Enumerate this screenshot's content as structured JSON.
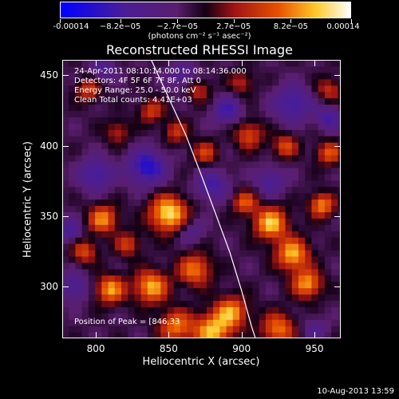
{
  "colorbar": {
    "tick_labels": [
      "-0.00014",
      "−8.2e−05",
      "−2.7e−05",
      "2.7e−05",
      "8.2e−05",
      "0.00014"
    ],
    "tick_values": [
      -0.00014,
      -8.2e-05,
      -2.7e-05,
      2.7e-05,
      8.2e-05,
      0.00014
    ],
    "range": [
      -0.00014,
      0.00014
    ],
    "units": "(photons cm⁻² s⁻¹ asec⁻²)",
    "colors": [
      "#0000ff",
      "#4b1e96",
      "#5a1e6e",
      "#000000",
      "#c81e1e",
      "#ff7800",
      "#ffffff"
    ]
  },
  "title": "Reconstructed RHESSI Image",
  "info": {
    "time": "24-Apr-2011 08:10:14.000 to 08:14:36.000",
    "detectors": "Detectors: 4F 5F 6F 7F 8F, Att 0",
    "energy": "Energy Range: 25.0 - 50.0 keV",
    "clean": "Clean    Total counts: 4.41E+03",
    "peak": "Position of Peak = [846,33"
  },
  "footer": "10-Aug-2013 13:59",
  "chart_data": {
    "type": "heatmap",
    "title": "Reconstructed RHESSI Image",
    "xlabel": "Heliocentric X (arcsec)",
    "ylabel": "Heliocentric Y (arcsec)",
    "xlim": [
      777,
      968
    ],
    "ylim": [
      263,
      461
    ],
    "xticks": [
      800,
      850,
      900,
      950
    ],
    "yticks": [
      300,
      350,
      400,
      450
    ],
    "xtick_labels": [
      "800",
      "850",
      "900",
      "950"
    ],
    "ytick_labels": [
      "300",
      "350",
      "400",
      "450"
    ],
    "grid": false,
    "limb_curve": {
      "x": [
        838,
        850,
        862,
        872,
        882,
        892,
        900,
        907,
        913,
        916
      ],
      "y": [
        461,
        434,
        407,
        380,
        352,
        324,
        297,
        271,
        252,
        263
      ]
    },
    "peak_position": [
      846,
      33
    ],
    "blobs": [
      {
        "x": 850,
        "y": 352,
        "amp": 1.0,
        "r": 9
      },
      {
        "x": 805,
        "y": 348,
        "amp": 0.75,
        "r": 7
      },
      {
        "x": 792,
        "y": 325,
        "amp": 0.55,
        "r": 6
      },
      {
        "x": 822,
        "y": 330,
        "amp": 0.5,
        "r": 6
      },
      {
        "x": 810,
        "y": 298,
        "amp": 0.8,
        "r": 7
      },
      {
        "x": 838,
        "y": 300,
        "amp": 0.85,
        "r": 8
      },
      {
        "x": 868,
        "y": 312,
        "amp": 0.7,
        "r": 8
      },
      {
        "x": 893,
        "y": 282,
        "amp": 0.75,
        "r": 8
      },
      {
        "x": 880,
        "y": 268,
        "amp": 0.85,
        "r": 9
      },
      {
        "x": 855,
        "y": 272,
        "amp": 0.7,
        "r": 8
      },
      {
        "x": 920,
        "y": 345,
        "amp": 0.9,
        "r": 8
      },
      {
        "x": 935,
        "y": 323,
        "amp": 0.85,
        "r": 8
      },
      {
        "x": 945,
        "y": 302,
        "amp": 0.8,
        "r": 7
      },
      {
        "x": 925,
        "y": 270,
        "amp": 0.7,
        "r": 8
      },
      {
        "x": 960,
        "y": 395,
        "amp": 0.6,
        "r": 6
      },
      {
        "x": 955,
        "y": 358,
        "amp": 0.75,
        "r": 6
      },
      {
        "x": 930,
        "y": 400,
        "amp": 0.55,
        "r": 6
      },
      {
        "x": 905,
        "y": 408,
        "amp": 0.55,
        "r": 7
      },
      {
        "x": 902,
        "y": 360,
        "amp": 0.6,
        "r": 6
      },
      {
        "x": 875,
        "y": 395,
        "amp": 0.5,
        "r": 6
      },
      {
        "x": 838,
        "y": 425,
        "amp": 0.5,
        "r": 6
      },
      {
        "x": 855,
        "y": 410,
        "amp": 0.45,
        "r": 6
      },
      {
        "x": 795,
        "y": 440,
        "amp": 0.5,
        "r": 6
      },
      {
        "x": 815,
        "y": 410,
        "amp": 0.4,
        "r": 6
      },
      {
        "x": 960,
        "y": 440,
        "amp": 0.45,
        "r": 6
      },
      {
        "x": 900,
        "y": 445,
        "amp": 0.4,
        "r": 6
      },
      {
        "x": 870,
        "y": 440,
        "amp": 0.45,
        "r": 6
      },
      {
        "x": 835,
        "y": 385,
        "amp": -0.7,
        "r": 9
      },
      {
        "x": 800,
        "y": 380,
        "amp": -0.55,
        "r": 8
      },
      {
        "x": 880,
        "y": 372,
        "amp": -0.5,
        "r": 8
      },
      {
        "x": 935,
        "y": 430,
        "amp": -0.55,
        "r": 9
      },
      {
        "x": 890,
        "y": 425,
        "amp": -0.5,
        "r": 7
      },
      {
        "x": 960,
        "y": 420,
        "amp": -0.5,
        "r": 6
      },
      {
        "x": 782,
        "y": 340,
        "amp": -0.45,
        "r": 6
      },
      {
        "x": 785,
        "y": 300,
        "amp": -0.45,
        "r": 7
      },
      {
        "x": 920,
        "y": 375,
        "amp": -0.45,
        "r": 7
      },
      {
        "x": 805,
        "y": 455,
        "amp": -0.4,
        "r": 6
      },
      {
        "x": 860,
        "y": 450,
        "amp": -0.4,
        "r": 7
      },
      {
        "x": 865,
        "y": 340,
        "amp": -0.35,
        "r": 6
      },
      {
        "x": 950,
        "y": 270,
        "amp": -0.3,
        "r": 6
      }
    ]
  }
}
